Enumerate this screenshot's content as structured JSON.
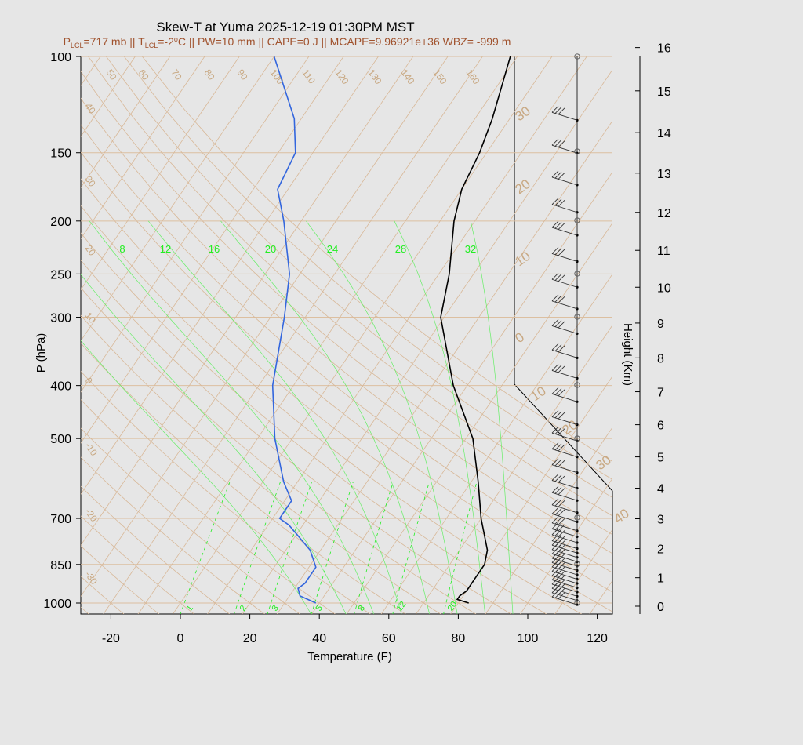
{
  "title": "Skew-T at Yuma 2025-12-19 01:30PM MST",
  "subtitle": {
    "p_lcl_label": "P",
    "p_lcl_sub": "LCL",
    "p_lcl_value": "=717 mb || T",
    "t_lcl_sub": "LCL",
    "t_lcl_value": "=-2",
    "t_lcl_sup": "o",
    "rest": "C || PW=10 mm || CAPE=0 J || MCAPE=9.96921e+36 WBZ= -999 m"
  },
  "colors": {
    "temperature": "#000000",
    "dewpoint": "#3366dd",
    "isotherm": "#d2b48c",
    "isobar": "#e0c0a0",
    "mixing_ratio": "#22ee22",
    "wind": "#333333",
    "subtitle": "#a0522d"
  },
  "chart_data": {
    "type": "skew-t",
    "xlabel": "Temperature (F)",
    "ylabel": "P (hPa)",
    "y2label": "Height (Km)",
    "x_ticks": [
      -20,
      0,
      20,
      40,
      60,
      80,
      100,
      120
    ],
    "x_tick_labels": [
      "-20",
      "0",
      "20",
      "40",
      "60",
      "80",
      "100",
      "120"
    ],
    "p_ticks": [
      100,
      150,
      200,
      250,
      300,
      400,
      500,
      700,
      850,
      1000
    ],
    "p_tick_labels": [
      "100",
      "150",
      "200",
      "250",
      "300",
      "400",
      "500",
      "700",
      "850",
      "1000"
    ],
    "height_ticks": [
      0,
      1,
      2,
      3,
      4,
      5,
      6,
      7,
      8,
      9,
      10,
      11,
      12,
      13,
      14,
      15,
      16
    ],
    "height_tick_labels": [
      "0",
      "1",
      "2",
      "3",
      "4",
      "5",
      "6",
      "7",
      "8",
      "9",
      "10",
      "11",
      "12",
      "13",
      "14",
      "15",
      "16"
    ],
    "isotherm_labels": [
      "50",
      "60",
      "70",
      "80",
      "90",
      "100",
      "110",
      "120",
      "130",
      "140",
      "150",
      "160"
    ],
    "isotherm_labels_left": [
      "40",
      "30",
      "20",
      "10",
      "0",
      "-10",
      "-20",
      "-30"
    ],
    "theta_e_labels_right": [
      "30",
      "20",
      "10",
      "0"
    ],
    "theta_e_labels_lower": [
      "10",
      "20",
      "30",
      "40"
    ],
    "mixing_ratio_top_labels": [
      "8",
      "12",
      "16",
      "20",
      "24",
      "28",
      "32"
    ],
    "mixing_ratio_bottom_labels": [
      "1",
      "2",
      "3",
      "5",
      "8",
      "12",
      "20"
    ],
    "temperature_f": [
      {
        "p": 1000,
        "t": 83
      },
      {
        "p": 985,
        "t": 79
      },
      {
        "p": 970,
        "t": 79
      },
      {
        "p": 950,
        "t": 80
      },
      {
        "p": 900,
        "t": 80
      },
      {
        "p": 850,
        "t": 80
      },
      {
        "p": 800,
        "t": 78
      },
      {
        "p": 700,
        "t": 70
      },
      {
        "p": 600,
        "t": 62
      },
      {
        "p": 500,
        "t": 52
      },
      {
        "p": 400,
        "t": 36
      },
      {
        "p": 300,
        "t": 19
      },
      {
        "p": 250,
        "t": 13
      },
      {
        "p": 200,
        "t": 4
      },
      {
        "p": 175,
        "t": 0
      },
      {
        "p": 150,
        "t": -2
      },
      {
        "p": 130,
        "t": -5
      },
      {
        "p": 100,
        "t": -12
      }
    ],
    "dewpoint_f": [
      {
        "p": 1000,
        "t": 39
      },
      {
        "p": 970,
        "t": 33
      },
      {
        "p": 940,
        "t": 31
      },
      {
        "p": 920,
        "t": 32
      },
      {
        "p": 860,
        "t": 32
      },
      {
        "p": 800,
        "t": 27
      },
      {
        "p": 720,
        "t": 16
      },
      {
        "p": 700,
        "t": 12
      },
      {
        "p": 650,
        "t": 12
      },
      {
        "p": 600,
        "t": 6
      },
      {
        "p": 500,
        "t": -5
      },
      {
        "p": 400,
        "t": -16
      },
      {
        "p": 300,
        "t": -26
      },
      {
        "p": 250,
        "t": -33
      },
      {
        "p": 200,
        "t": -45
      },
      {
        "p": 175,
        "t": -53
      },
      {
        "p": 150,
        "t": -55
      },
      {
        "p": 130,
        "t": -62
      },
      {
        "p": 100,
        "t": -80
      }
    ],
    "wind_barbs_km": [
      0.05,
      0.2,
      0.35,
      0.5,
      0.65,
      0.8,
      0.95,
      1.1,
      1.25,
      1.4,
      1.55,
      1.7,
      1.85,
      2.0,
      2.2,
      2.4,
      2.6,
      2.9,
      3.2,
      3.6,
      4.0,
      4.5,
      5.0,
      5.5,
      6.0,
      6.7,
      7.4,
      8.0,
      8.7,
      9.4,
      10.0,
      10.7,
      11.4,
      12.0,
      12.7,
      13.5,
      14.3
    ]
  }
}
